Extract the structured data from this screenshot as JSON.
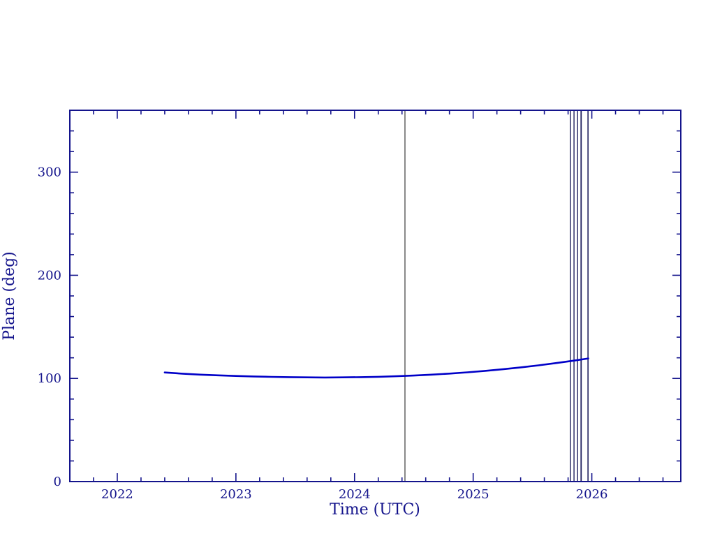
{
  "page": {
    "background_color": "#ffffff"
  },
  "chart_data": {
    "type": "line",
    "title": "",
    "xlabel": "Time (UTC)",
    "ylabel": "Plane (deg)",
    "xlim": [
      2021.6,
      2026.75
    ],
    "ylim": [
      0,
      360
    ],
    "x_ticks": [
      2022,
      2023,
      2024,
      2025,
      2026
    ],
    "x_tick_labels": [
      "2022",
      "2023",
      "2024",
      "2025",
      "2026"
    ],
    "y_ticks": [
      0,
      100,
      200,
      300
    ],
    "y_tick_labels": [
      "0",
      "100",
      "200",
      "300"
    ],
    "x_minor_step": 0.2,
    "y_minor_step": 20,
    "grid": false,
    "legend": "none",
    "axis_color": "#14148c",
    "series": [
      {
        "name": "plane-angle-curve",
        "color": "#0000c8",
        "width": 2.6,
        "x": [
          2022.4,
          2022.55,
          2022.7,
          2022.85,
          2023.0,
          2023.15,
          2023.3,
          2023.45,
          2023.6,
          2023.75,
          2023.9,
          2024.05,
          2024.2,
          2024.35,
          2024.5,
          2024.65,
          2024.8,
          2024.95,
          2025.1,
          2025.25,
          2025.4,
          2025.55,
          2025.7,
          2025.85,
          2025.97
        ],
        "y": [
          105.8,
          104.6,
          103.7,
          103.0,
          102.4,
          101.9,
          101.5,
          101.2,
          101.0,
          100.9,
          101.0,
          101.2,
          101.6,
          102.1,
          102.8,
          103.7,
          104.7,
          105.9,
          107.3,
          108.9,
          110.7,
          112.7,
          114.9,
          117.3,
          119.4
        ]
      }
    ],
    "vlines": [
      {
        "x": 2024.425,
        "color": "#3a3a3a",
        "width": 1.2,
        "name": "epoch-vline"
      },
      {
        "x": 2025.82,
        "color": "#21215f",
        "width": 1.4,
        "name": "event-vline"
      },
      {
        "x": 2025.85,
        "color": "#21215f",
        "width": 1.4,
        "name": "event-vline"
      },
      {
        "x": 2025.88,
        "color": "#21215f",
        "width": 1.4,
        "name": "event-vline"
      },
      {
        "x": 2025.91,
        "color": "#21215f",
        "width": 1.8,
        "name": "event-vline"
      },
      {
        "x": 2025.968,
        "color": "#21215f",
        "width": 1.6,
        "name": "event-vline"
      }
    ]
  }
}
